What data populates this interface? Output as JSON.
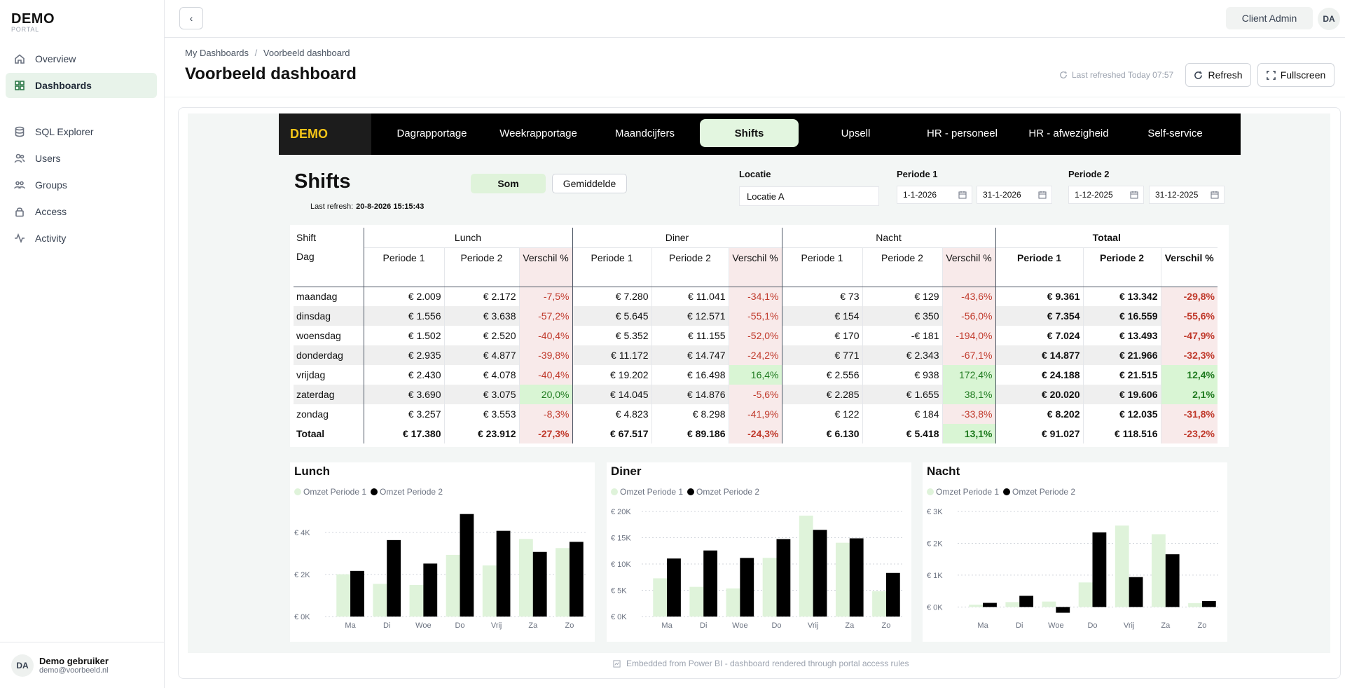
{
  "sidebar": {
    "logo_title": "DEMO",
    "logo_sub": "PORTAL",
    "items": [
      {
        "label": "Overview",
        "icon": "home-icon"
      },
      {
        "label": "Dashboards",
        "icon": "grid-icon"
      },
      {
        "label": "SQL Explorer",
        "icon": "database-icon"
      },
      {
        "label": "Users",
        "icon": "users-icon"
      },
      {
        "label": "Groups",
        "icon": "groups-icon"
      },
      {
        "label": "Access",
        "icon": "lock-icon"
      },
      {
        "label": "Activity",
        "icon": "activity-icon"
      }
    ],
    "user": {
      "initials": "DA",
      "name": "Demo gebruiker",
      "email": "demo@voorbeeld.nl"
    }
  },
  "topbar": {
    "client_label": "Client Admin",
    "avatar_initials": "DA"
  },
  "breadcrumb": {
    "root": "My Dashboards",
    "sep": "/",
    "current": "Voorbeeld dashboard"
  },
  "page_title": "Voorbeeld dashboard",
  "last_refreshed": "Last refreshed Today 07:57",
  "buttons": {
    "refresh": "Refresh",
    "fullscreen": "Fullscreen"
  },
  "footer_note": "Embedded from Power BI - dashboard rendered through portal access rules",
  "report": {
    "logo": "DEMO",
    "tabs": [
      "Dagrapportage",
      "Weekrapportage",
      "Maandcijfers",
      "Shifts",
      "Upsell",
      "HR - personeel",
      "HR - afwezigheid",
      "Self-service"
    ],
    "active_tab": "Shifts",
    "title": "Shifts",
    "last_refresh_label": "Last refresh:",
    "last_refresh_value": "20-8-2026 15:15:43",
    "toggle": {
      "som": "Som",
      "gemiddelde": "Gemiddelde"
    },
    "locatie": {
      "label": "Locatie",
      "value": "Locatie A"
    },
    "periode1": {
      "label": "Periode 1",
      "from": "1-1-2026",
      "to": "31-1-2026"
    },
    "periode2": {
      "label": "Periode 2",
      "from": "1-12-2025",
      "to": "31-12-2025"
    },
    "table": {
      "shift_label": "Shift",
      "day_label": "Dag",
      "groups": [
        "Lunch",
        "Diner",
        "Nacht",
        "Totaal"
      ],
      "col_p1": "Periode 1",
      "col_p2": "Periode 2",
      "col_diff": "Verschil %",
      "rows": [
        {
          "dag": "maandag",
          "v": [
            "€ 2.009",
            "€ 2.172",
            "-7,5%",
            "€ 7.280",
            "€ 11.041",
            "-34,1%",
            "€ 73",
            "€ 129",
            "-43,6%",
            "€ 9.361",
            "€ 13.342",
            "-29,8%"
          ]
        },
        {
          "dag": "dinsdag",
          "v": [
            "€ 1.556",
            "€ 3.638",
            "-57,2%",
            "€ 5.645",
            "€ 12.571",
            "-55,1%",
            "€ 154",
            "€ 350",
            "-56,0%",
            "€ 7.354",
            "€ 16.559",
            "-55,6%"
          ]
        },
        {
          "dag": "woensdag",
          "v": [
            "€ 1.502",
            "€ 2.520",
            "-40,4%",
            "€ 5.352",
            "€ 11.155",
            "-52,0%",
            "€ 170",
            "-€ 181",
            "-194,0%",
            "€ 7.024",
            "€ 13.493",
            "-47,9%"
          ]
        },
        {
          "dag": "donderdag",
          "v": [
            "€ 2.935",
            "€ 4.877",
            "-39,8%",
            "€ 11.172",
            "€ 14.747",
            "-24,2%",
            "€ 771",
            "€ 2.343",
            "-67,1%",
            "€ 14.877",
            "€ 21.966",
            "-32,3%"
          ]
        },
        {
          "dag": "vrijdag",
          "v": [
            "€ 2.430",
            "€ 4.078",
            "-40,4%",
            "€ 19.202",
            "€ 16.498",
            "16,4%",
            "€ 2.556",
            "€ 938",
            "172,4%",
            "€ 24.188",
            "€ 21.515",
            "12,4%"
          ]
        },
        {
          "dag": "zaterdag",
          "v": [
            "€ 3.690",
            "€ 3.075",
            "20,0%",
            "€ 14.045",
            "€ 14.876",
            "-5,6%",
            "€ 2.285",
            "€ 1.655",
            "38,1%",
            "€ 20.020",
            "€ 19.606",
            "2,1%"
          ]
        },
        {
          "dag": "zondag",
          "v": [
            "€ 3.257",
            "€ 3.553",
            "-8,3%",
            "€ 4.823",
            "€ 8.298",
            "-41,9%",
            "€ 122",
            "€ 184",
            "-33,8%",
            "€ 8.202",
            "€ 12.035",
            "-31,8%"
          ]
        }
      ],
      "total": {
        "dag": "Totaal",
        "v": [
          "€ 17.380",
          "€ 23.912",
          "-27,3%",
          "€ 67.517",
          "€ 89.186",
          "-24,3%",
          "€ 6.130",
          "€ 5.418",
          "13,1%",
          "€ 91.027",
          "€ 118.516",
          "-23,2%"
        ]
      }
    }
  },
  "colors": {
    "accent": "#2f7a4a",
    "period1_bar": "#dff3da",
    "period2_bar": "#000000",
    "negative": "#c0392b",
    "positive": "#1f7a1f",
    "brand_yellow": "#f5c518"
  },
  "chart_data": [
    {
      "type": "bar",
      "title": "Lunch",
      "categories": [
        "Ma",
        "Di",
        "Woe",
        "Do",
        "Vrij",
        "Za",
        "Zo"
      ],
      "series": [
        {
          "name": "Omzet Periode 1",
          "values": [
            2009,
            1556,
            1502,
            2935,
            2430,
            3690,
            3257
          ]
        },
        {
          "name": "Omzet Periode 2",
          "values": [
            2172,
            3638,
            2520,
            4877,
            4078,
            3075,
            3553
          ]
        }
      ],
      "yticks": [
        "€ 0K",
        "€ 2K",
        "€ 4K"
      ],
      "ylim": [
        0,
        5000
      ],
      "legend": "top-left"
    },
    {
      "type": "bar",
      "title": "Diner",
      "categories": [
        "Ma",
        "Di",
        "Woe",
        "Do",
        "Vrij",
        "Za",
        "Zo"
      ],
      "series": [
        {
          "name": "Omzet Periode 1",
          "values": [
            7280,
            5645,
            5352,
            11172,
            19202,
            14045,
            4823
          ]
        },
        {
          "name": "Omzet Periode 2",
          "values": [
            11041,
            12571,
            11155,
            14747,
            16498,
            14876,
            8298
          ]
        }
      ],
      "yticks": [
        "€ 0K",
        "€ 5K",
        "€ 10K",
        "€ 15K",
        "€ 20K"
      ],
      "ylim": [
        0,
        20000
      ],
      "legend": "top-left"
    },
    {
      "type": "bar",
      "title": "Nacht",
      "categories": [
        "Ma",
        "Di",
        "Woe",
        "Do",
        "Vrij",
        "Za",
        "Zo"
      ],
      "series": [
        {
          "name": "Omzet Periode 1",
          "values": [
            73,
            154,
            170,
            771,
            2556,
            2285,
            122
          ]
        },
        {
          "name": "Omzet Periode 2",
          "values": [
            129,
            350,
            -181,
            2343,
            938,
            1655,
            184
          ]
        }
      ],
      "yticks": [
        "€ 0K",
        "€ 1K",
        "€ 2K",
        "€ 3K"
      ],
      "ylim": [
        -300,
        3000
      ],
      "legend": "top-left"
    }
  ]
}
